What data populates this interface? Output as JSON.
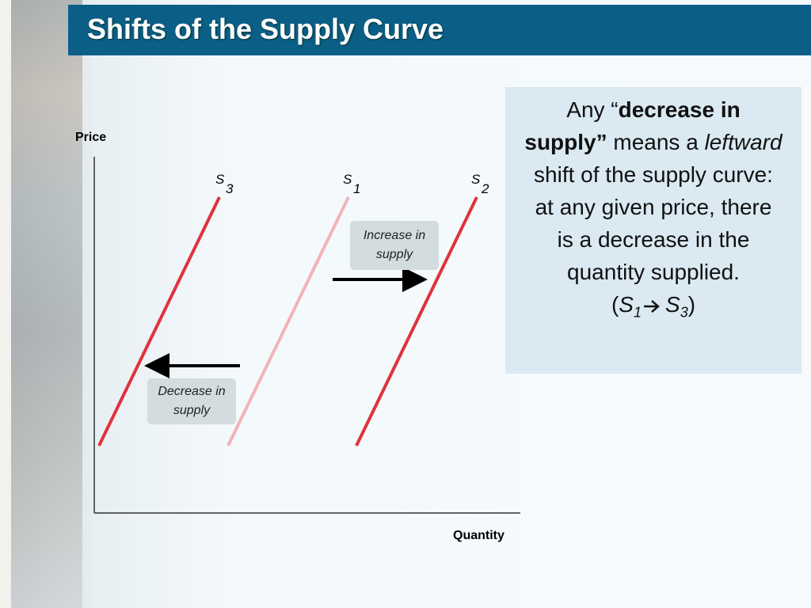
{
  "header": {
    "title": "Shifts of the Supply Curve"
  },
  "diagram": {
    "y_axis_label": "Price",
    "x_axis_label": "Quantity",
    "curves": [
      {
        "letter": "S",
        "subscript": "3"
      },
      {
        "letter": "S",
        "subscript": "1"
      },
      {
        "letter": "S",
        "subscript": "2"
      }
    ],
    "callouts": [
      {
        "text": "Increase in supply"
      },
      {
        "text": "Decrease in supply"
      }
    ]
  },
  "note": {
    "parts": [
      "Any “",
      "decrease in supply”",
      " means a ",
      "leftward",
      " shift of the supply curve: at any given price, there is a decrease in the quantity supplied.",
      "(",
      "S",
      "1",
      "S",
      "3",
      ")"
    ]
  }
}
